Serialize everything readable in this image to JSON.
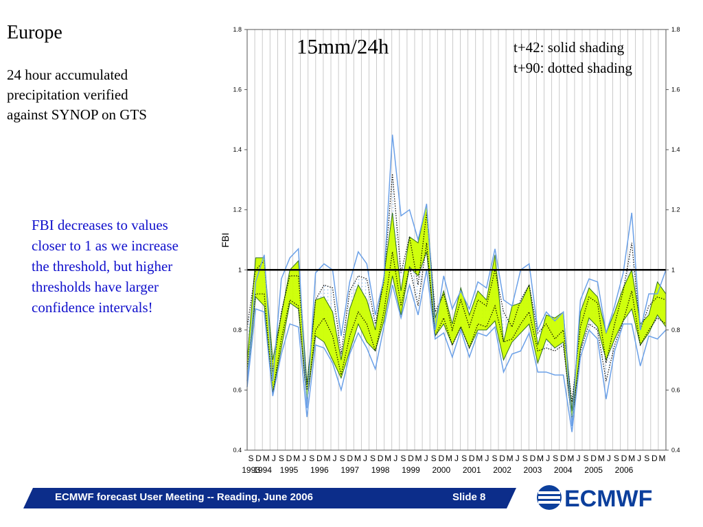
{
  "slide": {
    "title": "Europe",
    "subtitle": "24 hour accumulated precipitation verified against SYNOP on GTS",
    "note": "FBI decreases to values closer to 1 as we increase the threshold, but higher thresholds have larger confidence intervals!",
    "footer_text": "ECMWF forecast User Meeting -- Reading, June 2006",
    "slide_number": "Slide 8",
    "logo_text": "ECMWF"
  },
  "colors": {
    "band_fill": "#ccff00",
    "band_edge": "#2f6f1f",
    "ci_line": "#6aa0e8",
    "t90_dotted": "#000000",
    "dotted_fill": "#9ec5f0",
    "reference_line": "#000000",
    "note_text": "#1010cc",
    "footer_bar": "#0c2d8a",
    "logo": "#0c3f9c"
  },
  "chart_data": {
    "type": "line",
    "title": "15mm/24h",
    "legend": [
      "t+42: solid shading",
      "t+90: dotted shading"
    ],
    "ylabel": "FBI",
    "ylim": [
      0.4,
      1.8
    ],
    "yticks": [
      "0.4",
      "0.6",
      "0.8",
      "1",
      "1.2",
      "1.4",
      "1.6",
      "1.8"
    ],
    "grid": "vertical",
    "reference_line": 1.0,
    "season_labels": [
      "S",
      "D",
      "M",
      "J",
      "S",
      "D",
      "M",
      "J",
      "S",
      "D",
      "M",
      "J",
      "S",
      "D",
      "M",
      "J",
      "S",
      "D",
      "M",
      "J",
      "S",
      "D",
      "M",
      "J",
      "S",
      "D",
      "M",
      "J",
      "S",
      "D",
      "M",
      "J",
      "S",
      "D",
      "M",
      "J",
      "S",
      "D",
      "M",
      "J",
      "S",
      "D",
      "M",
      "J",
      "S",
      "D",
      "M",
      "J",
      "S",
      "D",
      "M",
      "J",
      "S",
      "D",
      "M"
    ],
    "year_labels": [
      "1993",
      "1994",
      "1995",
      "1996",
      "1997",
      "1998",
      "1999",
      "2000",
      "2001",
      "2002",
      "2003",
      "2004",
      "2005",
      "2006"
    ],
    "series": [
      {
        "name": "t+42: solid shading",
        "upper": [
          0.7,
          1.04,
          1.04,
          0.7,
          0.85,
          1.0,
          1.03,
          0.62,
          0.9,
          0.91,
          0.86,
          0.7,
          0.87,
          0.95,
          0.9,
          0.8,
          0.98,
          1.19,
          0.93,
          1.11,
          1.09,
          1.22,
          0.84,
          0.93,
          0.82,
          0.94,
          0.85,
          0.93,
          0.9,
          1.05,
          0.76,
          0.88,
          0.89,
          0.95,
          0.75,
          0.85,
          0.84,
          0.86,
          0.53,
          0.86,
          0.94,
          0.91,
          0.79,
          0.86,
          0.94,
          1.0,
          0.82,
          0.85,
          0.96,
          0.92
        ],
        "lower": [
          0.63,
          0.91,
          0.88,
          0.59,
          0.74,
          0.89,
          0.87,
          0.56,
          0.78,
          0.76,
          0.7,
          0.64,
          0.73,
          0.82,
          0.76,
          0.73,
          0.83,
          0.98,
          0.85,
          1.01,
          0.98,
          1.06,
          0.78,
          0.82,
          0.75,
          0.81,
          0.74,
          0.8,
          0.8,
          0.83,
          0.7,
          0.76,
          0.79,
          0.82,
          0.69,
          0.77,
          0.74,
          0.76,
          0.49,
          0.74,
          0.84,
          0.81,
          0.7,
          0.77,
          0.83,
          0.87,
          0.75,
          0.79,
          0.85,
          0.81
        ]
      },
      {
        "name": "t+90: dotted shading",
        "upper": [
          0.81,
          1.0,
          1.03,
          0.66,
          0.86,
          0.98,
          0.98,
          0.6,
          0.9,
          0.95,
          0.94,
          0.72,
          0.93,
          0.98,
          0.97,
          0.82,
          0.96,
          1.32,
          0.99,
          1.11,
          0.95,
          1.19,
          0.86,
          0.92,
          0.8,
          0.9,
          0.81,
          0.9,
          0.88,
          1.0,
          0.86,
          0.81,
          0.9,
          0.95,
          0.79,
          0.82,
          0.77,
          0.8,
          0.56,
          0.81,
          0.91,
          0.89,
          0.69,
          0.82,
          0.93,
          1.09,
          0.8,
          0.88,
          0.91,
          0.9
        ],
        "lower": [
          0.67,
          0.92,
          0.92,
          0.59,
          0.77,
          0.9,
          0.88,
          0.56,
          0.8,
          0.84,
          0.78,
          0.65,
          0.78,
          0.86,
          0.82,
          0.73,
          0.86,
          1.06,
          0.88,
          1.01,
          0.88,
          1.09,
          0.78,
          0.84,
          0.75,
          0.81,
          0.74,
          0.82,
          0.81,
          0.88,
          0.76,
          0.77,
          0.82,
          0.86,
          0.73,
          0.74,
          0.73,
          0.75,
          0.5,
          0.73,
          0.82,
          0.8,
          0.63,
          0.75,
          0.83,
          0.93,
          0.75,
          0.8,
          0.84,
          0.82
        ]
      },
      {
        "name": "",
        "upper": [
          0.63,
          0.96,
          1.05,
          0.63,
          0.97,
          1.04,
          1.07,
          0.54,
          0.99,
          1.02,
          1.0,
          0.78,
          0.96,
          1.06,
          1.02,
          0.85,
          0.97,
          1.45,
          1.18,
          1.2,
          1.1,
          1.22,
          0.8,
          0.98,
          0.87,
          0.93,
          0.87,
          0.96,
          0.94,
          1.07,
          0.9,
          0.88,
          1.0,
          1.02,
          0.8,
          0.86,
          0.83,
          0.86,
          0.48,
          0.9,
          0.97,
          0.96,
          0.79,
          0.88,
          0.99,
          1.19,
          0.8,
          0.92,
          0.92,
          1.0
        ],
        "lower": [
          0.61,
          0.87,
          0.86,
          0.58,
          0.72,
          0.82,
          0.81,
          0.51,
          0.75,
          0.74,
          0.69,
          0.6,
          0.72,
          0.79,
          0.74,
          0.67,
          0.81,
          0.95,
          0.84,
          0.95,
          0.85,
          1.0,
          0.77,
          0.79,
          0.71,
          0.8,
          0.71,
          0.79,
          0.78,
          0.81,
          0.66,
          0.72,
          0.73,
          0.79,
          0.66,
          0.66,
          0.65,
          0.65,
          0.46,
          0.71,
          0.8,
          0.77,
          0.57,
          0.73,
          0.82,
          0.82,
          0.68,
          0.78,
          0.77,
          0.8
        ]
      }
    ]
  }
}
